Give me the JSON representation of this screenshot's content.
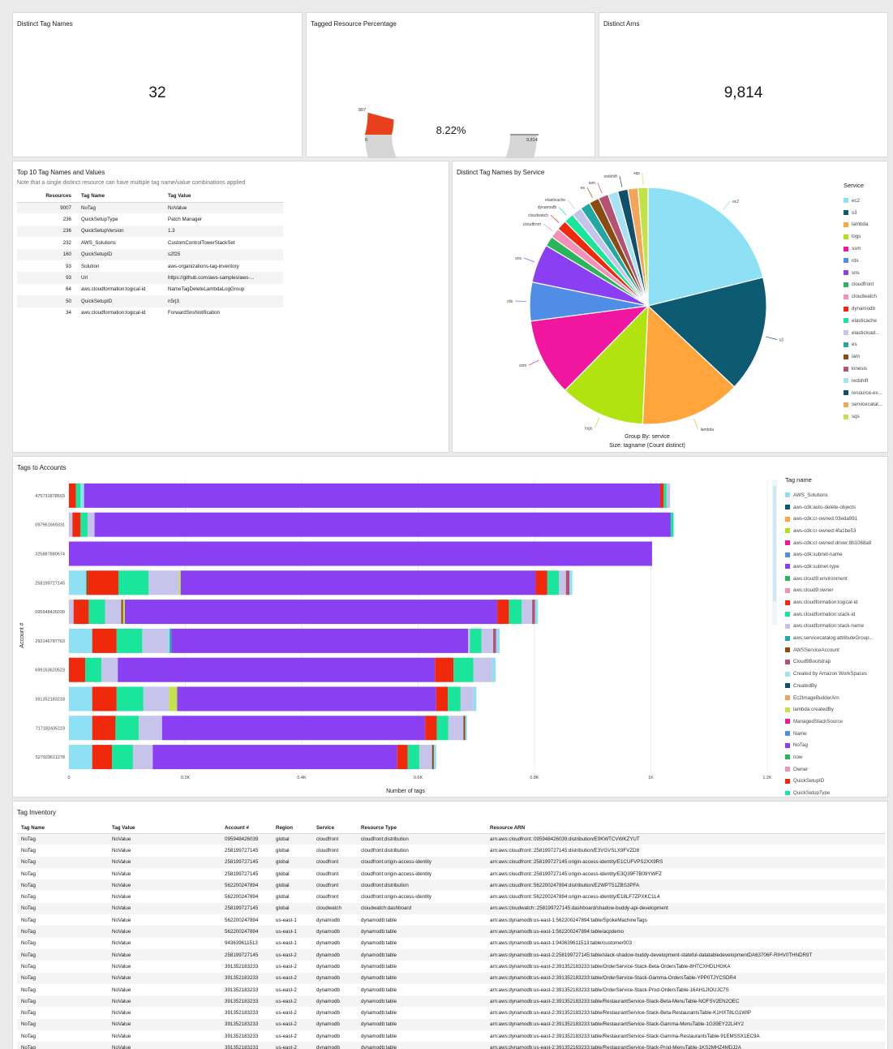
{
  "colors": {
    "accent_red": "#e8401c",
    "gauge_gray": "#d5d5d5"
  },
  "kpi_tag_names": {
    "title": "Distinct Tag Names",
    "value": "32"
  },
  "kpi_tagged_pct": {
    "title": "Tagged Resource Percentage",
    "value_text": "8.22%",
    "fill_fraction": 0.0822,
    "min_label": "0",
    "max_label": "9,814",
    "marker_label": "807"
  },
  "kpi_arns": {
    "title": "Distinct Arns",
    "value": "9,814"
  },
  "top10": {
    "title": "Top 10 Tag Names and Values",
    "note": "Note that a single distinct resource can have multiple tag name/value combinations applied",
    "headers": {
      "resources": "Resources",
      "tag_name": "Tag Name",
      "tag_value": "Tag Value"
    },
    "rows": [
      {
        "resources": "9007",
        "tag_name": "NoTag",
        "tag_value": "NoValue"
      },
      {
        "resources": "236",
        "tag_name": "QuickSetupType",
        "tag_value": "Patch Manager"
      },
      {
        "resources": "236",
        "tag_name": "QuickSetupVersion",
        "tag_value": "1.3"
      },
      {
        "resources": "232",
        "tag_name": "AWS_Solutions",
        "tag_value": "CustomControlTowerStackSet"
      },
      {
        "resources": "160",
        "tag_name": "QuickSetupID",
        "tag_value": "s2f25"
      },
      {
        "resources": "93",
        "tag_name": "Solution",
        "tag_value": "aws-organizations-tag-inventory"
      },
      {
        "resources": "93",
        "tag_name": "Url",
        "tag_value": "https://github.com/aws-samples/aws-..."
      },
      {
        "resources": "64",
        "tag_name": "aws:cloudformation:logical-id",
        "tag_value": "NameTagDeleteLambdaLogGroup"
      },
      {
        "resources": "50",
        "tag_name": "QuickSetupID",
        "tag_value": "n5rj3"
      },
      {
        "resources": "34",
        "tag_name": "aws:cloudformation:logical-id",
        "tag_value": "ForwardSnsNotification"
      }
    ]
  },
  "pie": {
    "title": "Distinct Tag Names by Service",
    "legend_title": "Service",
    "footer_group": "Group By: service",
    "footer_size": "Size: tagname (Count distinct)",
    "legend": [
      {
        "label": "ec2",
        "color": "#8ee0f4"
      },
      {
        "label": "s3",
        "color": "#0d5a73"
      },
      {
        "label": "lambda",
        "color": "#ffa53c"
      },
      {
        "label": "logs",
        "color": "#b0e30f"
      },
      {
        "label": "ssm",
        "color": "#f0169f"
      },
      {
        "label": "rds",
        "color": "#4f8de6"
      },
      {
        "label": "sns",
        "color": "#8a3ff3"
      },
      {
        "label": "cloudfront",
        "color": "#2bb55a"
      },
      {
        "label": "cloudwatch",
        "color": "#f58fb8"
      },
      {
        "label": "dynamodb",
        "color": "#f0290c"
      },
      {
        "label": "elasticache",
        "color": "#19e69a"
      },
      {
        "label": "elasticload...",
        "color": "#c6c4ea"
      },
      {
        "label": "es",
        "color": "#22a7a3"
      },
      {
        "label": "iam",
        "color": "#8a4a10"
      },
      {
        "label": "kinesis",
        "color": "#b45274"
      },
      {
        "label": "redshift",
        "color": "#a6e2f2"
      },
      {
        "label": "resource-ex...",
        "color": "#124f6b"
      },
      {
        "label": "servicecatal...",
        "color": "#f2a65a"
      },
      {
        "label": "sqs",
        "color": "#c3e24a"
      }
    ]
  },
  "chart_data": [
    {
      "type": "pie",
      "title": "Distinct Tag Names by Service",
      "labels": [
        "ec2",
        "s3",
        "lambda",
        "logs",
        "ssm",
        "rds",
        "sns",
        "cloudfront",
        "cloudwatch",
        "dynamodb",
        "elasticache",
        "elasticload...",
        "es",
        "iam",
        "kinesis",
        "redshift",
        "resource-ex...",
        "servicecatal...",
        "sqs"
      ],
      "slice_labels": [
        "ec2",
        "s3",
        "lambda",
        "logs",
        "ssm",
        "rds",
        "sns",
        "",
        "cloudfront",
        "cloudwatch",
        "dynamodb",
        "elasticache",
        "",
        "es",
        "iam",
        "",
        "redshift",
        "",
        "sqs"
      ],
      "values": [
        20,
        15,
        13,
        11,
        10,
        5,
        5,
        1.3,
        1.3,
        1.3,
        1.3,
        1.3,
        1.3,
        1.3,
        1.3,
        1.3,
        1.3,
        1.3,
        1.3
      ]
    },
    {
      "type": "bar",
      "orientation": "horizontal",
      "stacked": true,
      "title": "Tags to Accounts",
      "xlabel": "Number of tags",
      "ylabel": "Account #",
      "xlim": [
        0,
        1200
      ],
      "x_ticks": [
        0,
        200,
        400,
        600,
        800,
        1000,
        1200
      ],
      "x_tick_labels": [
        "0",
        "0.2K",
        "0.4K",
        "0.6K",
        "0.8K",
        "1K",
        "1.2K"
      ],
      "categories": [
        "475731878503",
        "097961669331",
        "325887880674",
        "258199727145",
        "095948426039",
        "292146787763",
        "699163620523",
        "391352183233",
        "717182435119",
        "527929611278"
      ],
      "series_order_note": "Each bar lists segments left-to-right as [color, value in tags]",
      "bars": [
        [
          [
            "#f0290c",
            12
          ],
          [
            "#19e69a",
            8
          ],
          [
            "#8ee0f4",
            6
          ],
          [
            "#8a3ff3",
            990
          ],
          [
            "#f0290c",
            6
          ],
          [
            "#19e69a",
            5
          ],
          [
            "#c6c4ea",
            6
          ]
        ],
        [
          [
            "#c6c4ea",
            6
          ],
          [
            "#f0290c",
            14
          ],
          [
            "#19e69a",
            12
          ],
          [
            "#c6c4ea",
            12
          ],
          [
            "#8a3ff3",
            990
          ],
          [
            "#19e69a",
            5
          ]
        ],
        [
          [
            "#8a3ff3",
            1002
          ]
        ],
        [
          [
            "#8ee0f4",
            30
          ],
          [
            "#8a4a10",
            3
          ],
          [
            "#f0290c",
            52
          ],
          [
            "#19e69a",
            52
          ],
          [
            "#c6c4ea",
            52
          ],
          [
            "#c3e24a",
            3
          ],
          [
            "#8a3ff3",
            610
          ],
          [
            "#f0290c",
            20
          ],
          [
            "#19e69a",
            20
          ],
          [
            "#c6c4ea",
            12
          ],
          [
            "#b45274",
            6
          ],
          [
            "#8ee0f4",
            5
          ]
        ],
        [
          [
            "#c6c4ea",
            8
          ],
          [
            "#f0290c",
            26
          ],
          [
            "#19e69a",
            28
          ],
          [
            "#c6c4ea",
            28
          ],
          [
            "#8a4a10",
            3
          ],
          [
            "#c3e24a",
            3
          ],
          [
            "#8a3ff3",
            640
          ],
          [
            "#f0290c",
            20
          ],
          [
            "#19e69a",
            22
          ],
          [
            "#c6c4ea",
            18
          ],
          [
            "#b45274",
            5
          ],
          [
            "#8ee0f4",
            5
          ]
        ],
        [
          [
            "#8ee0f4",
            40
          ],
          [
            "#f0290c",
            42
          ],
          [
            "#19e69a",
            44
          ],
          [
            "#c6c4ea",
            44
          ],
          [
            "#8ee0f4",
            3
          ],
          [
            "#22a7a3",
            3
          ],
          [
            "#8a3ff3",
            510
          ],
          [
            "#c6c4ea",
            3
          ],
          [
            "#19e69a",
            20
          ],
          [
            "#c6c4ea",
            20
          ],
          [
            "#b45274",
            5
          ],
          [
            "#8ee0f4",
            6
          ]
        ],
        [
          [
            "#f0290c",
            28
          ],
          [
            "#19e69a",
            28
          ],
          [
            "#c6c4ea",
            28
          ],
          [
            "#8a3ff3",
            545
          ],
          [
            "#f0290c",
            32
          ],
          [
            "#19e69a",
            34
          ],
          [
            "#c6c4ea",
            32
          ],
          [
            "#8ee0f4",
            6
          ]
        ],
        [
          [
            "#8ee0f4",
            40
          ],
          [
            "#f0290c",
            42
          ],
          [
            "#19e69a",
            46
          ],
          [
            "#c6c4ea",
            44
          ],
          [
            "#c3e24a",
            14
          ],
          [
            "#8a3ff3",
            445
          ],
          [
            "#f0290c",
            20
          ],
          [
            "#19e69a",
            22
          ],
          [
            "#c6c4ea",
            22
          ],
          [
            "#8ee0f4",
            5
          ]
        ],
        [
          [
            "#8ee0f4",
            40
          ],
          [
            "#f0290c",
            40
          ],
          [
            "#19e69a",
            40
          ],
          [
            "#c6c4ea",
            40
          ],
          [
            "#8a3ff3",
            452
          ],
          [
            "#f0290c",
            20
          ],
          [
            "#19e69a",
            20
          ],
          [
            "#c6c4ea",
            26
          ],
          [
            "#8a4a10",
            3
          ],
          [
            "#8ee0f4",
            3
          ]
        ],
        [
          [
            "#8ee0f4",
            40
          ],
          [
            "#f0290c",
            34
          ],
          [
            "#19e69a",
            36
          ],
          [
            "#c6c4ea",
            34
          ],
          [
            "#8a3ff3",
            420
          ],
          [
            "#f0290c",
            18
          ],
          [
            "#19e69a",
            20
          ],
          [
            "#c6c4ea",
            22
          ],
          [
            "#8a4a10",
            3
          ],
          [
            "#8ee0f4",
            4
          ]
        ]
      ]
    }
  ],
  "accounts_chart": {
    "title": "Tags to Accounts",
    "legend_title": "Tag name",
    "legend": [
      {
        "label": "AWS_Solutions",
        "color": "#8ee0f4"
      },
      {
        "label": "aws-cdk:auto-delete-objects",
        "color": "#0d5a73"
      },
      {
        "label": "aws-cdk:cr-owned:03eda991",
        "color": "#ffa53c"
      },
      {
        "label": "aws-cdk:cr-owned:4fa1be53",
        "color": "#b0e30f"
      },
      {
        "label": "aws-cdk:cr-owned:driver:8b1068a9",
        "color": "#f0169f"
      },
      {
        "label": "aws-cdk:subnet-name",
        "color": "#4f8de6"
      },
      {
        "label": "aws-cdk:subnet-type",
        "color": "#8a3ff3"
      },
      {
        "label": "aws:cloud9:environment",
        "color": "#2bb55a"
      },
      {
        "label": "aws:cloud9:owner",
        "color": "#f58fb8"
      },
      {
        "label": "aws:cloudformation:logical-id",
        "color": "#f0290c"
      },
      {
        "label": "aws:cloudformation:stack-id",
        "color": "#19e69a"
      },
      {
        "label": "aws:cloudformation:stack-name",
        "color": "#c6c4ea"
      },
      {
        "label": "aws:servicecatalog:attributeGroup...",
        "color": "#22a7a3"
      },
      {
        "label": "AWSServiceAccount",
        "color": "#8a4a10"
      },
      {
        "label": "Cloud9Bootstrap",
        "color": "#b45274"
      },
      {
        "label": "Created by Amazon WorkSpaces",
        "color": "#a6e2f2"
      },
      {
        "label": "CreatedBy",
        "color": "#124f6b"
      },
      {
        "label": "Ec2ImageBuilderArn",
        "color": "#f2a65a"
      },
      {
        "label": "lambda:createdBy",
        "color": "#c3e24a"
      },
      {
        "label": "ManagedStackSource",
        "color": "#f0169f"
      },
      {
        "label": "Name",
        "color": "#4f8de6"
      },
      {
        "label": "NoTag",
        "color": "#8a3ff3"
      },
      {
        "label": "now",
        "color": "#2bb55a"
      },
      {
        "label": "Owner",
        "color": "#f58fb8"
      },
      {
        "label": "QuickSetupID",
        "color": "#f0290c"
      },
      {
        "label": "QuickSetupType",
        "color": "#19e69a"
      }
    ]
  },
  "inventory": {
    "title": "Tag Inventory",
    "headers": [
      "Tag Name",
      "Tag Value",
      "Account #",
      "Region",
      "Service",
      "Resource Type",
      "Resource ARN"
    ],
    "rows": [
      [
        "NoTag",
        "NoValue",
        "095948426039",
        "global",
        "cloudfront",
        "cloudfront:distribution",
        "arn:aws:cloudfront::095948426039:distribution/E9KWTCVWKZYUT"
      ],
      [
        "NoTag",
        "NoValue",
        "258199727145",
        "global",
        "cloudfront",
        "cloudfront:distribution",
        "arn:aws:cloudfront::258199727145:distribution/E3VGVSLX9FVZD8"
      ],
      [
        "NoTag",
        "NoValue",
        "258199727145",
        "global",
        "cloudfront",
        "cloudfront:origin-access-identity",
        "arn:aws:cloudfront::258199727145:origin-access-identity/E1CUFVPS2XX9RS"
      ],
      [
        "NoTag",
        "NoValue",
        "258199727145",
        "global",
        "cloudfront",
        "cloudfront:origin-access-identity",
        "arn:aws:cloudfront::258199727145:origin-access-identity/E3Q39F7B09YWFZ"
      ],
      [
        "NoTag",
        "NoValue",
        "562200247894",
        "global",
        "cloudfront",
        "cloudfront:distribution",
        "arn:aws:cloudfront::562200247894:distribution/E2WPT51ZBS3PFA"
      ],
      [
        "NoTag",
        "NoValue",
        "562200247894",
        "global",
        "cloudfront",
        "cloudfront:origin-access-identity",
        "arn:aws:cloudfront::562200247894:origin-access-identity/E18LF7ZPXKC1L4"
      ],
      [
        "NoTag",
        "NoValue",
        "258199727145",
        "global",
        "cloudwatch",
        "cloudwatch:dashboard",
        "arn:aws:cloudwatch::258199727145:dashboard/shadow-buddy-api-development"
      ],
      [
        "NoTag",
        "NoValue",
        "562200247894",
        "us-east-1",
        "dynamodb",
        "dynamodb:table",
        "arn:aws:dynamodb:us-east-1:562200247894:table/SpokeMachineTags"
      ],
      [
        "NoTag",
        "NoValue",
        "562200247894",
        "us-east-1",
        "dynamodb",
        "dynamodb:table",
        "arn:aws:dynamodb:us-east-1:562200247894:table/acpdemo"
      ],
      [
        "NoTag",
        "NoValue",
        "943639611513",
        "us-east-1",
        "dynamodb",
        "dynamodb:table",
        "arn:aws:dynamodb:us-east-1:943639611513:table/customer003"
      ],
      [
        "NoTag",
        "NoValue",
        "258199727145",
        "us-east-2",
        "dynamodb",
        "dynamodb:table",
        "arn:aws:dynamodb:us-east-2:258199727145:table/slack-shadow-buddy-development-stateful-datatabledevelopmentDA63706F-RIHV0THNDR9T"
      ],
      [
        "NoTag",
        "NoValue",
        "391352183233",
        "us-east-2",
        "dynamodb",
        "dynamodb:table",
        "arn:aws:dynamodb:us-east-2:391352183233:table/OrderService-Stack-Beta-OrdersTable-8HTCXHDLHGKA"
      ],
      [
        "NoTag",
        "NoValue",
        "391352183233",
        "us-east-2",
        "dynamodb",
        "dynamodb:table",
        "arn:aws:dynamodb:us-east-2:391352183233:table/OrderService-Stack-Gamma-OrdersTable-YPP0TJYCSDR4"
      ],
      [
        "NoTag",
        "NoValue",
        "391352183233",
        "us-east-2",
        "dynamodb",
        "dynamodb:table",
        "arn:aws:dynamodb:us-east-2:391352183233:table/OrderService-Stack-Prod-OrdersTable-16AH1JIOUJC7S"
      ],
      [
        "NoTag",
        "NoValue",
        "391352183233",
        "us-east-2",
        "dynamodb",
        "dynamodb:table",
        "arn:aws:dynamodb:us-east-2:391352183233:table/RestaurantService-Stack-Beta-MenuTable-NOFSV2EN2OEC"
      ],
      [
        "NoTag",
        "NoValue",
        "391352183233",
        "us-east-2",
        "dynamodb",
        "dynamodb:table",
        "arn:aws:dynamodb:us-east-2:391352183233:table/RestaurantService-Stack-Beta-RestaurantsTable-K1HXT8LG1WIP"
      ],
      [
        "NoTag",
        "NoValue",
        "391352183233",
        "us-east-2",
        "dynamodb",
        "dynamodb:table",
        "arn:aws:dynamodb:us-east-2:391352183233:table/RestaurantService-Stack-Gamma-MenuTable-1G39EY22LI4Y2"
      ],
      [
        "NoTag",
        "NoValue",
        "391352183233",
        "us-east-2",
        "dynamodb",
        "dynamodb:table",
        "arn:aws:dynamodb:us-east-2:391352183233:table/RestaurantService-Stack-Gamma-RestaurantsTable-91EMSSX1EC9A"
      ],
      [
        "NoTag",
        "NoValue",
        "391352183233",
        "us-east-2",
        "dynamodb",
        "dynamodb:table",
        "arn:aws:dynamodb:us-east-2:391352183233:table/RestaurantService-Stack-Prod-MenuTable-1KS2MHZ4MDJ2A"
      ]
    ]
  }
}
